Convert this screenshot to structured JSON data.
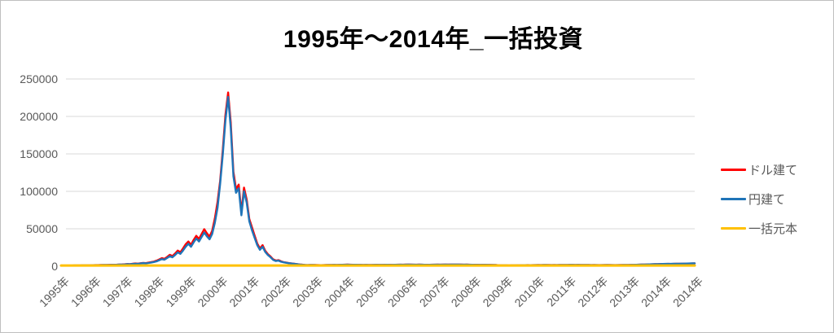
{
  "chart_data": {
    "type": "line",
    "title": "1995年～2014年_一括投資",
    "legend_position": "right",
    "grid": true,
    "style": {
      "grid_color": "#D9D9D9",
      "axis_label_color": "#595959",
      "title_color": "#000000",
      "frame_border_color": "#BFBFBF",
      "background": "#FFFFFF"
    },
    "y_axis": {
      "max": 250000,
      "ylim": [
        0,
        250000
      ],
      "ticks": [
        0,
        50000,
        100000,
        150000,
        200000,
        250000
      ]
    },
    "x_axis": {
      "labels": [
        "1995年",
        "1996年",
        "1997年",
        "1998年",
        "1999年",
        "2000年",
        "2001年",
        "2002年",
        "2003年",
        "2004年",
        "2005年",
        "2006年",
        "2007年",
        "2008年",
        "2009年",
        "2010年",
        "2011年",
        "2012年",
        "2013年",
        "2014年",
        "2014年"
      ]
    },
    "series": [
      {
        "key": "usd",
        "name": "ドル建て",
        "color": "#FF0000",
        "values": [
          800,
          850,
          900,
          870,
          920,
          950,
          1000,
          980,
          1050,
          1100,
          1150,
          1250,
          1370,
          1520,
          1470,
          1630,
          1730,
          1680,
          1840,
          2000,
          1940,
          2100,
          2260,
          2360,
          2640,
          2970,
          2860,
          3300,
          3740,
          3520,
          4070,
          4510,
          4180,
          4840,
          5500,
          6160,
          7350,
          9040,
          10740,
          9940,
          12430,
          15260,
          13560,
          16950,
          20900,
          18650,
          23730,
          29380,
          33000,
          28600,
          35200,
          40700,
          36300,
          42900,
          49500,
          44000,
          39600,
          47300,
          63800,
          85800,
          114000,
          156000,
          202000,
          232000,
          192000,
          126000,
          103000,
          109000,
          72000,
          105000,
          89000,
          63000,
          51800,
          41000,
          30200,
          23800,
          28100,
          20500,
          16200,
          13000,
          9200,
          7600,
          8100,
          6500,
          5400,
          4780,
          4160,
          3740,
          3220,
          2810,
          2390,
          2080,
          1770,
          1560,
          1660,
          1770,
          1580,
          1480,
          1380,
          1480,
          1580,
          1680,
          1790,
          1890,
          1790,
          1890,
          1990,
          2040,
          2140,
          2040,
          1940,
          1990,
          1890,
          1840,
          1790,
          1840,
          1730,
          1790,
          1890,
          1940,
          1890,
          1840,
          1940,
          1990,
          1940,
          1890,
          1990,
          2040,
          2090,
          2040,
          2140,
          2190,
          2140,
          2090,
          2040,
          2140,
          2090,
          1990,
          1940,
          1990,
          2040,
          2090,
          2140,
          2090,
          2140,
          2190,
          2140,
          2240,
          2300,
          2240,
          2190,
          2140,
          2090,
          2140,
          2040,
          1990,
          2000,
          1940,
          1890,
          1940,
          2000,
          1890,
          1840,
          1790,
          1580,
          1260,
          1160,
          1210,
          1120,
          1020,
          1070,
          1170,
          1280,
          1330,
          1380,
          1430,
          1480,
          1430,
          1480,
          1530,
          1580,
          1530,
          1630,
          1680,
          1580,
          1530,
          1580,
          1530,
          1630,
          1680,
          1730,
          1790,
          1840,
          1890,
          1790,
          1840,
          1790,
          1730,
          1790,
          1680,
          1530,
          1580,
          1530,
          1480,
          1530,
          1580,
          1630,
          1580,
          1530,
          1480,
          1530,
          1580,
          1630,
          1680,
          1730,
          1840,
          1900,
          2000,
          2100,
          2200,
          2300,
          2400,
          2500,
          2600,
          2700,
          2800,
          2900,
          3000,
          3040,
          3140,
          3090,
          3190,
          3230,
          3330,
          3380,
          3430,
          3530,
          3630,
          3720,
          3820
        ]
      },
      {
        "key": "jpy",
        "name": "円建て",
        "color": "#1F74B8",
        "values": [
          800,
          850,
          900,
          870,
          920,
          950,
          1000,
          980,
          1050,
          1100,
          1150,
          1250,
          1300,
          1450,
          1400,
          1550,
          1650,
          1600,
          1750,
          1900,
          1850,
          2000,
          2150,
          2250,
          2400,
          2700,
          2600,
          3000,
          3400,
          3200,
          3700,
          4100,
          3800,
          4400,
          5000,
          5600,
          6500,
          8000,
          9500,
          8800,
          11000,
          13500,
          12000,
          15000,
          18500,
          16500,
          21000,
          26000,
          30000,
          26000,
          32000,
          37000,
          33000,
          39000,
          45000,
          40000,
          36000,
          43000,
          58000,
          78000,
          110000,
          150000,
          195000,
          226000,
          185000,
          120000,
          98000,
          104000,
          68000,
          100000,
          85000,
          60000,
          48000,
          38000,
          28000,
          22000,
          26000,
          19000,
          15000,
          12000,
          8500,
          7000,
          7500,
          6000,
          5200,
          4600,
          4000,
          3600,
          3100,
          2700,
          2300,
          2000,
          1700,
          1500,
          1600,
          1700,
          1550,
          1450,
          1350,
          1450,
          1550,
          1650,
          1750,
          1850,
          1750,
          1850,
          1950,
          2000,
          2100,
          2000,
          1900,
          1950,
          1850,
          1800,
          1750,
          1800,
          1700,
          1750,
          1850,
          1900,
          1850,
          1800,
          1900,
          1950,
          1900,
          1850,
          1950,
          2000,
          2050,
          2000,
          2100,
          2150,
          2100,
          2050,
          2000,
          2100,
          2050,
          1950,
          1900,
          1950,
          2000,
          2050,
          2100,
          2050,
          2100,
          2150,
          2100,
          2200,
          2250,
          2200,
          2150,
          2100,
          2050,
          2100,
          2000,
          1950,
          1900,
          1850,
          1800,
          1850,
          1900,
          1800,
          1750,
          1700,
          1500,
          1200,
          1100,
          1150,
          1100,
          1000,
          1050,
          1150,
          1250,
          1300,
          1350,
          1400,
          1450,
          1400,
          1450,
          1500,
          1550,
          1500,
          1600,
          1650,
          1550,
          1500,
          1550,
          1500,
          1600,
          1650,
          1700,
          1750,
          1800,
          1850,
          1750,
          1800,
          1750,
          1700,
          1750,
          1650,
          1500,
          1550,
          1500,
          1450,
          1500,
          1550,
          1600,
          1550,
          1500,
          1450,
          1500,
          1550,
          1600,
          1650,
          1700,
          1800,
          1900,
          2000,
          2100,
          2200,
          2300,
          2400,
          2500,
          2600,
          2700,
          2800,
          2900,
          3000,
          3100,
          3200,
          3150,
          3250,
          3300,
          3400,
          3450,
          3500,
          3600,
          3700,
          3800,
          3900
        ]
      },
      {
        "key": "principal",
        "name": "一括元本",
        "color": "#FFC000",
        "constant": 1000
      }
    ]
  }
}
